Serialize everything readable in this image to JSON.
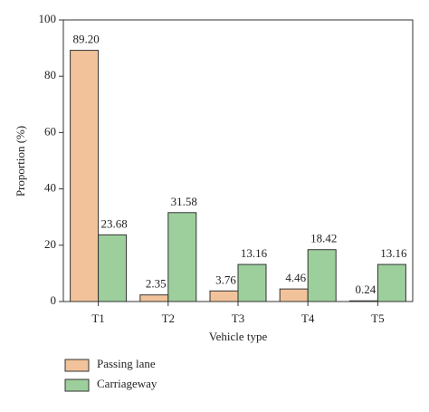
{
  "chart_data": {
    "type": "bar",
    "categories": [
      "T1",
      "T2",
      "T3",
      "T4",
      "T5"
    ],
    "series": [
      {
        "name": "Passing lane",
        "color": "#f2c39a",
        "values": [
          89.2,
          2.35,
          3.76,
          4.46,
          0.24
        ],
        "value_labels": [
          "89.20",
          "2.35",
          "3.76",
          "4.46",
          "0.24"
        ]
      },
      {
        "name": "Carriageway",
        "color": "#9dcf9d",
        "values": [
          23.68,
          31.58,
          13.16,
          18.42,
          13.16
        ],
        "value_labels": [
          "23.68",
          "31.58",
          "13.16",
          "18.42",
          "13.16"
        ]
      }
    ],
    "xlabel": "Vehicle type",
    "ylabel": "Proportion (%)",
    "ylim": [
      0,
      100
    ],
    "yticks": [
      0,
      20,
      40,
      60,
      80,
      100
    ]
  }
}
